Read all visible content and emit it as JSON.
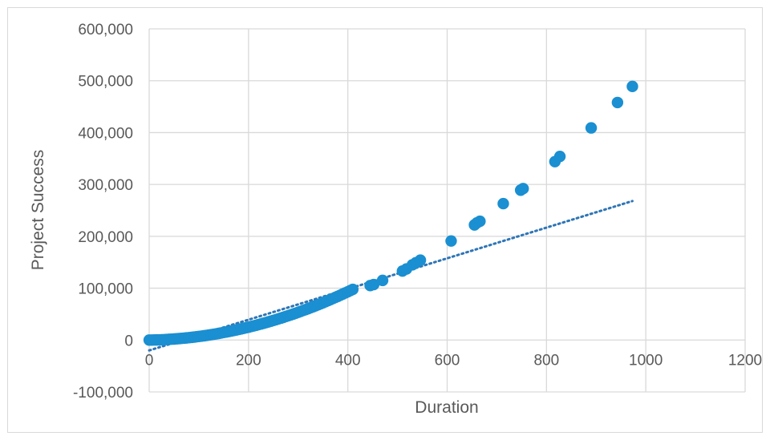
{
  "chart_data": {
    "type": "scatter",
    "title": "",
    "xlabel": "Duration",
    "ylabel": "Project Success",
    "xlim": [
      0,
      1200
    ],
    "ylim": [
      -100000,
      600000
    ],
    "x_ticks": [
      0,
      200,
      400,
      600,
      800,
      1000,
      1200
    ],
    "y_ticks": [
      -100000,
      0,
      100000,
      200000,
      300000,
      400000,
      500000,
      600000
    ],
    "x_tick_labels": [
      "0",
      "200",
      "400",
      "600",
      "800",
      "1000",
      "1200"
    ],
    "y_tick_labels": [
      "-100,000",
      "0",
      "100,000",
      "200,000",
      "300,000",
      "400,000",
      "500,000",
      "600,000"
    ],
    "grid": true,
    "legend": "none",
    "series_color": "#1a8fd1",
    "trendline_color": "#2e75b6",
    "series": [
      {
        "values": [
          [
            0,
            0
          ],
          [
            5,
            0
          ],
          [
            10,
            150
          ],
          [
            15,
            250
          ],
          [
            20,
            400
          ],
          [
            25,
            600
          ],
          [
            30,
            800
          ],
          [
            35,
            1100
          ],
          [
            40,
            1400
          ],
          [
            45,
            1700
          ],
          [
            50,
            2000
          ],
          [
            55,
            2400
          ],
          [
            60,
            2800
          ],
          [
            65,
            3200
          ],
          [
            70,
            3600
          ],
          [
            75,
            4100
          ],
          [
            80,
            4600
          ],
          [
            85,
            5100
          ],
          [
            90,
            5700
          ],
          [
            95,
            6300
          ],
          [
            100,
            6900
          ],
          [
            105,
            7500
          ],
          [
            110,
            8200
          ],
          [
            115,
            8900
          ],
          [
            120,
            9600
          ],
          [
            125,
            10400
          ],
          [
            130,
            11200
          ],
          [
            135,
            12000
          ],
          [
            140,
            12800
          ],
          [
            145,
            13700
          ],
          [
            150,
            14600
          ],
          [
            155,
            15500
          ],
          [
            160,
            16400
          ],
          [
            165,
            17400
          ],
          [
            170,
            18400
          ],
          [
            175,
            19400
          ],
          [
            180,
            20400
          ],
          [
            185,
            21500
          ],
          [
            190,
            22600
          ],
          [
            195,
            23700
          ],
          [
            200,
            24800
          ],
          [
            205,
            26000
          ],
          [
            210,
            27200
          ],
          [
            215,
            28400
          ],
          [
            220,
            29700
          ],
          [
            225,
            31000
          ],
          [
            230,
            32300
          ],
          [
            235,
            33600
          ],
          [
            240,
            35000
          ],
          [
            245,
            36400
          ],
          [
            250,
            37800
          ],
          [
            255,
            39200
          ],
          [
            260,
            40700
          ],
          [
            265,
            42200
          ],
          [
            270,
            43700
          ],
          [
            275,
            45300
          ],
          [
            280,
            46900
          ],
          [
            285,
            48500
          ],
          [
            290,
            50100
          ],
          [
            295,
            51800
          ],
          [
            300,
            53500
          ],
          [
            305,
            55200
          ],
          [
            310,
            56900
          ],
          [
            315,
            58700
          ],
          [
            320,
            60500
          ],
          [
            325,
            62300
          ],
          [
            330,
            64200
          ],
          [
            335,
            66100
          ],
          [
            340,
            68000
          ],
          [
            345,
            69900
          ],
          [
            350,
            71900
          ],
          [
            355,
            73900
          ],
          [
            360,
            75900
          ],
          [
            365,
            78000
          ],
          [
            370,
            80100
          ],
          [
            375,
            82200
          ],
          [
            380,
            84300
          ],
          [
            385,
            86500
          ],
          [
            390,
            88700
          ],
          [
            395,
            90900
          ],
          [
            400,
            93100
          ],
          [
            405,
            95400
          ],
          [
            410,
            97700
          ],
          [
            445,
            105000
          ],
          [
            452,
            107000
          ],
          [
            470,
            115000
          ],
          [
            510,
            133000
          ],
          [
            518,
            137000
          ],
          [
            530,
            145000
          ],
          [
            537,
            149000
          ],
          [
            546,
            154000
          ],
          [
            608,
            191000
          ],
          [
            655,
            222000
          ],
          [
            660,
            226000
          ],
          [
            666,
            229000
          ],
          [
            713,
            263000
          ],
          [
            748,
            289000
          ],
          [
            753,
            292000
          ],
          [
            817,
            344000
          ],
          [
            827,
            354000
          ],
          [
            890,
            409000
          ],
          [
            943,
            458000
          ],
          [
            973,
            489000
          ]
        ]
      }
    ],
    "trendline": {
      "type": "linear",
      "x": [
        0,
        973
      ],
      "y": [
        -20000,
        268000
      ]
    }
  }
}
